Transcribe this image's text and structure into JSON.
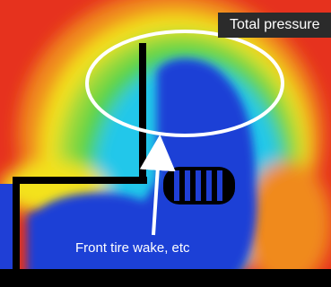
{
  "figure": {
    "legend_title": "Total pressure",
    "annotation": "Front tire wake, etc"
  },
  "colors": {
    "field_low": "#1f3fd6",
    "field_mid": "#22c7ea",
    "field_green": "#4fd34a",
    "field_yellow": "#f3e21c",
    "field_high": "#e6321e",
    "highlight": "#ffffff",
    "geometry": "#000000"
  }
}
